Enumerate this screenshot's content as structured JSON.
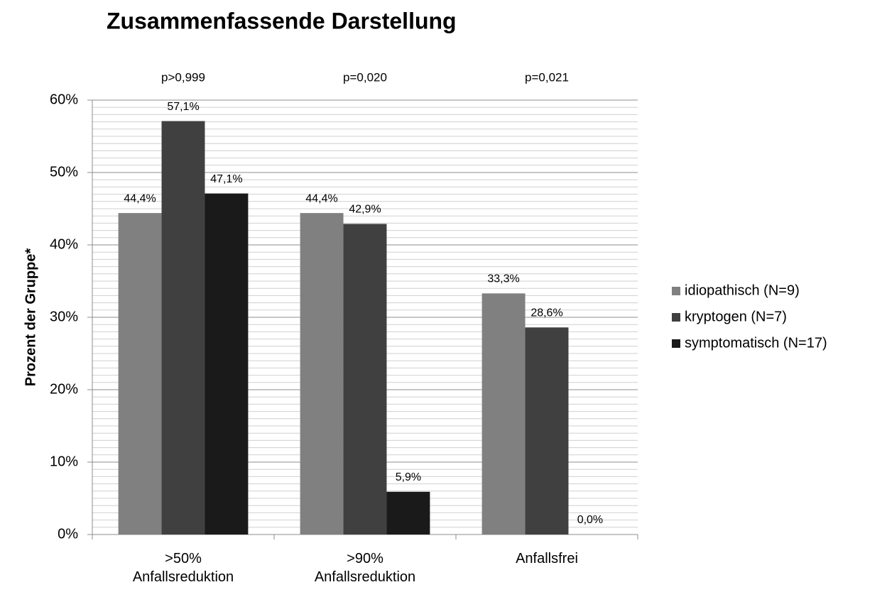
{
  "chart_data": {
    "type": "bar",
    "title": "Zusammenfassende Darstellung",
    "y_label": "Prozent der Gruppe*",
    "categories": [
      ">50% Anfallsreduktion",
      ">90% Anfallsreduktion",
      "Anfallsfrei"
    ],
    "annotations": [
      "p>0,999",
      "p=0,020",
      "p=0,021"
    ],
    "series": [
      {
        "name": "idiopathisch (N=9)",
        "color": "#808080",
        "values": [
          44.4,
          44.4,
          33.3
        ],
        "value_labels": [
          "44,4%",
          "44,4%",
          "33,3%"
        ]
      },
      {
        "name": "kryptogen (N=7)",
        "color": "#404040",
        "values": [
          57.1,
          42.9,
          28.6
        ],
        "value_labels": [
          "57,1%",
          "42,9%",
          "28,6%"
        ]
      },
      {
        "name": "symptomatisch (N=17)",
        "color": "#1a1a1a",
        "values": [
          47.1,
          5.9,
          0.0
        ],
        "value_labels": [
          "47,1%",
          "5,9%",
          "0,0%"
        ]
      }
    ],
    "ylim": [
      0,
      60
    ],
    "yticks": [
      {
        "value": 0,
        "label": "0%"
      },
      {
        "value": 10,
        "label": "10%"
      },
      {
        "value": 20,
        "label": "20%"
      },
      {
        "value": 30,
        "label": "30%"
      },
      {
        "value": 40,
        "label": "40%"
      },
      {
        "value": 50,
        "label": "50%"
      },
      {
        "value": 60,
        "label": "60%"
      }
    ],
    "grid": true,
    "minor_grid_step": 1,
    "legend": "right"
  }
}
